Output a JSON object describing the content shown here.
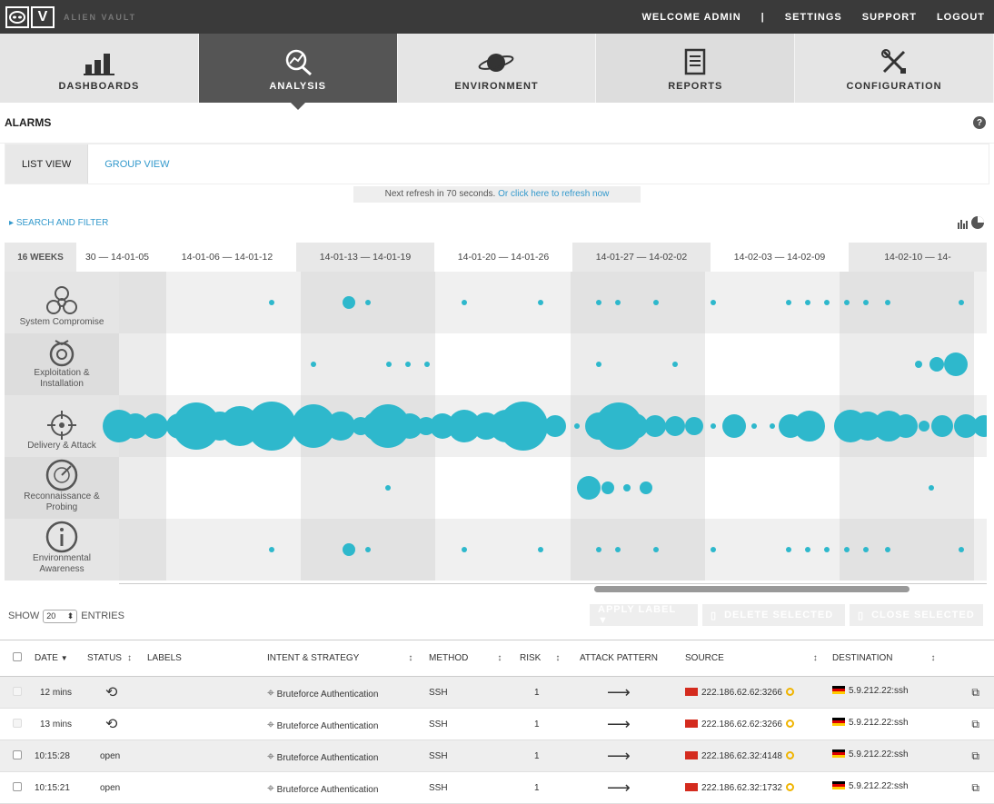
{
  "brand": {
    "logo_letter": "V",
    "name": "ALIEN VAULT"
  },
  "topnav": {
    "welcome": "WELCOME ADMIN",
    "separator": "|",
    "settings": "SETTINGS",
    "support": "SUPPORT",
    "logout": "LOGOUT"
  },
  "mainnav": [
    {
      "label": "DASHBOARDS",
      "icon": "bar-chart-icon"
    },
    {
      "label": "ANALYSIS",
      "icon": "magnifier-icon"
    },
    {
      "label": "ENVIRONMENT",
      "icon": "planet-icon"
    },
    {
      "label": "REPORTS",
      "icon": "document-icon"
    },
    {
      "label": "CONFIGURATION",
      "icon": "tools-icon"
    }
  ],
  "page": {
    "title": "ALARMS",
    "help": "?"
  },
  "views": {
    "list": "LIST VIEW",
    "group": "GROUP VIEW"
  },
  "refresh": {
    "text": "Next refresh in 70 seconds.",
    "link": "Or click here to refresh now"
  },
  "filter": {
    "label": "SEARCH AND FILTER"
  },
  "timeline": {
    "weeks_label": "16 WEEKS",
    "columns": [
      "30 — 14-01-05",
      "14-01-06 — 14-01-12",
      "14-01-13 — 14-01-19",
      "14-01-20 — 14-01-26",
      "14-01-27 — 14-02-02",
      "14-02-03 — 14-02-09",
      "14-02-10 — 14-"
    ],
    "rows": [
      {
        "label_line1": "System Compromise",
        "label_line2": "",
        "icon": "biohazard-icon"
      },
      {
        "label_line1": "Exploitation &",
        "label_line2": "Installation",
        "icon": "bomb-icon"
      },
      {
        "label_line1": "Delivery & Attack",
        "label_line2": "",
        "icon": "crosshair-icon"
      },
      {
        "label_line1": "Reconnaissance &",
        "label_line2": "Probing",
        "icon": "radar-icon"
      },
      {
        "label_line1": "Environmental",
        "label_line2": "Awareness",
        "icon": "info-icon"
      }
    ]
  },
  "controls": {
    "show": "SHOW",
    "entries_value": "20",
    "entries": "ENTRIES",
    "apply_label": "APPLY LABEL ▼",
    "delete_selected": "DELETE SELECTED",
    "close_selected": "CLOSE SELECTED"
  },
  "table": {
    "headers": {
      "date": "DATE",
      "status": "STATUS",
      "labels": "LABELS",
      "intent": "INTENT & STRATEGY",
      "method": "METHOD",
      "risk": "RISK",
      "attack": "ATTACK PATTERN",
      "source": "SOURCE",
      "destination": "DESTINATION"
    },
    "rows": [
      {
        "date": "12 mins",
        "status": "",
        "intent": "Bruteforce Authentication",
        "method": "SSH",
        "risk": "1",
        "source": "222.186.62.62:3266",
        "destination": "5.9.212.22:ssh"
      },
      {
        "date": "13 mins",
        "status": "",
        "intent": "Bruteforce Authentication",
        "method": "SSH",
        "risk": "1",
        "source": "222.186.62.62:3266",
        "destination": "5.9.212.22:ssh"
      },
      {
        "date": "10:15:28",
        "status": "open",
        "intent": "Bruteforce Authentication",
        "method": "SSH",
        "risk": "1",
        "source": "222.186.62.32:4148",
        "destination": "5.9.212.22:ssh"
      },
      {
        "date": "10:15:21",
        "status": "open",
        "intent": "Bruteforce Authentication",
        "method": "SSH",
        "risk": "1",
        "source": "222.186.62.32:1732",
        "destination": "5.9.212.22:ssh"
      }
    ]
  },
  "colors": {
    "accent": "#3399cc",
    "bubble": "#2eb8cc",
    "topbar": "#3a3a3a"
  }
}
